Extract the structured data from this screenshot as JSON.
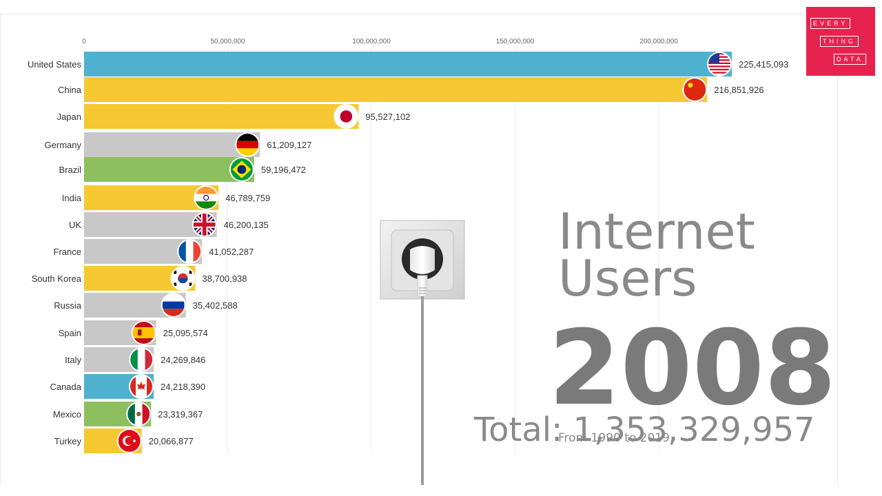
{
  "chart_data": {
    "type": "bar",
    "orientation": "horizontal",
    "title": "Internet Users",
    "year": "2008",
    "total_label": "Total: 1,353,329,957",
    "range_label": "From 1990 to 2019",
    "xlim": [
      0,
      225415093
    ],
    "x_ticks": [
      0,
      50000000,
      100000000,
      150000000,
      200000000
    ],
    "x_tick_labels": [
      "0",
      "50,000,000",
      "100,000,000",
      "150,000,000",
      "200,000,000"
    ],
    "grid": true,
    "categories": [
      "United States",
      "China",
      "Japan",
      "Germany",
      "Brazil",
      "India",
      "UK",
      "France",
      "South Korea",
      "Russia",
      "Spain",
      "Italy",
      "Canada",
      "Mexico",
      "Turkey"
    ],
    "values": [
      225415093,
      216851926,
      95527102,
      61209127,
      59196472,
      46789759,
      46200135,
      41052287,
      38700938,
      35402588,
      25095574,
      24269846,
      24218390,
      23319367,
      20066877
    ],
    "value_labels": [
      "225,415,093",
      "216,851,926",
      "95,527,102",
      "61,209,127",
      "59,196,472",
      "46,789,759",
      "46,200,135",
      "41,052,287",
      "38,700,938",
      "35,402,588",
      "25,095,574",
      "24,269,846",
      "24,218,390",
      "23,319,367",
      "20,066,877"
    ],
    "colors": [
      "#4eb1d0",
      "#f6c832",
      "#f6c832",
      "#c8c8c8",
      "#8dbf5f",
      "#f6c832",
      "#c8c8c8",
      "#c8c8c8",
      "#f6c832",
      "#c8c8c8",
      "#c8c8c8",
      "#c8c8c8",
      "#4eb1d0",
      "#8dbf5f",
      "#f6c832"
    ],
    "flags": [
      "us-flag-icon",
      "china-flag-icon",
      "japan-flag-icon",
      "germany-flag-icon",
      "brazil-flag-icon",
      "india-flag-icon",
      "uk-flag-icon",
      "france-flag-icon",
      "south-korea-flag-icon",
      "russia-flag-icon",
      "spain-flag-icon",
      "italy-flag-icon",
      "canada-flag-icon",
      "mexico-flag-icon",
      "turkey-flag-icon"
    ]
  },
  "logo": {
    "lines": [
      "EVERY",
      "THING",
      "DATA"
    ],
    "color": "#e8224f"
  },
  "decoration": {
    "icon": "power-socket-icon"
  }
}
